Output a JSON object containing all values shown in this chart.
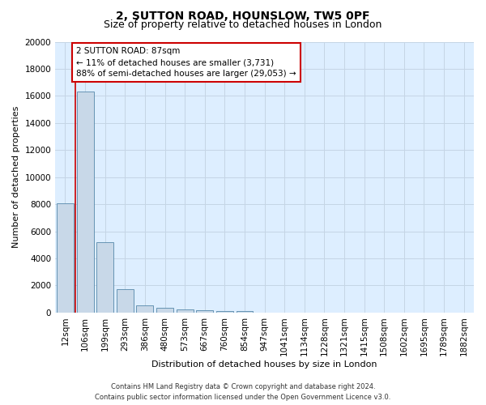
{
  "title": "2, SUTTON ROAD, HOUNSLOW, TW5 0PF",
  "subtitle": "Size of property relative to detached houses in London",
  "xlabel": "Distribution of detached houses by size in London",
  "ylabel": "Number of detached properties",
  "categories": [
    "12sqm",
    "106sqm",
    "199sqm",
    "293sqm",
    "386sqm",
    "480sqm",
    "573sqm",
    "667sqm",
    "760sqm",
    "854sqm",
    "947sqm",
    "1041sqm",
    "1134sqm",
    "1228sqm",
    "1321sqm",
    "1415sqm",
    "1508sqm",
    "1602sqm",
    "1695sqm",
    "1789sqm",
    "1882sqm"
  ],
  "values": [
    8050,
    16300,
    5200,
    1750,
    550,
    370,
    230,
    170,
    120,
    100,
    0,
    0,
    0,
    0,
    0,
    0,
    0,
    0,
    0,
    0,
    0
  ],
  "bar_color": "#c8d8e8",
  "bar_edge_color": "#5588aa",
  "annotation_text": "2 SUTTON ROAD: 87sqm\n← 11% of detached houses are smaller (3,731)\n88% of semi-detached houses are larger (29,053) →",
  "annotation_box_color": "#ffffff",
  "annotation_box_edge_color": "#cc0000",
  "red_line_color": "#cc0000",
  "ylim": [
    0,
    20000
  ],
  "yticks": [
    0,
    2000,
    4000,
    6000,
    8000,
    10000,
    12000,
    14000,
    16000,
    18000,
    20000
  ],
  "footer_line1": "Contains HM Land Registry data © Crown copyright and database right 2024.",
  "footer_line2": "Contains public sector information licensed under the Open Government Licence v3.0.",
  "bg_color": "#ffffff",
  "plot_bg_color": "#ddeeff",
  "grid_color": "#c5d5e5",
  "title_fontsize": 10,
  "subtitle_fontsize": 9,
  "axis_label_fontsize": 8,
  "tick_fontsize": 7.5,
  "footer_fontsize": 6,
  "annotation_fontsize": 7.5
}
